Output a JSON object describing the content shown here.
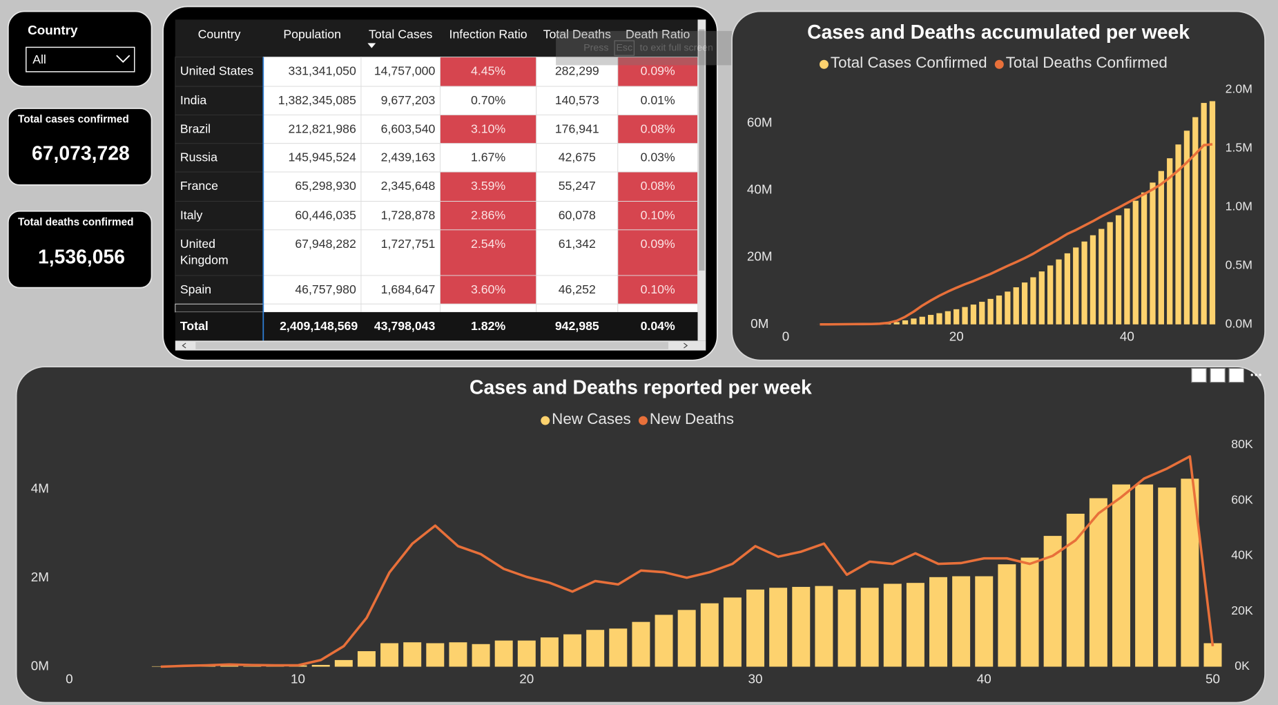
{
  "slicer": {
    "label": "Country",
    "selected": "All"
  },
  "cards": [
    {
      "label": "Total cases confirmed",
      "value": "67,073,728"
    },
    {
      "label": "Total deaths confirmed",
      "value": "1,536,056"
    }
  ],
  "fullscreen_hint": {
    "press": "Press",
    "key": "Esc",
    "rest": "to exit full screen"
  },
  "table": {
    "columns": [
      "Country",
      "Population",
      "Total Cases",
      "Infection Ratio",
      "Total Deaths",
      "Death Ratio"
    ],
    "rows": [
      [
        "United States",
        "331,341,050",
        "14,757,000",
        "4.45%",
        "282,299",
        "0.09%"
      ],
      [
        "India",
        "1,382,345,085",
        "9,677,203",
        "0.70%",
        "140,573",
        "0.01%"
      ],
      [
        "Brazil",
        "212,821,986",
        "6,603,540",
        "3.10%",
        "176,941",
        "0.08%"
      ],
      [
        "Russia",
        "145,945,524",
        "2,439,163",
        "1.67%",
        "42,675",
        "0.03%"
      ],
      [
        "France",
        "65,298,930",
        "2,345,648",
        "3.59%",
        "55,247",
        "0.08%"
      ],
      [
        "Italy",
        "60,446,035",
        "1,728,878",
        "2.86%",
        "60,078",
        "0.10%"
      ],
      [
        "United Kingdom",
        "67,948,282",
        "1,727,751",
        "2.54%",
        "61,342",
        "0.09%"
      ],
      [
        "Spain",
        "46,757,980",
        "1,684,647",
        "3.60%",
        "46,252",
        "0.10%"
      ]
    ],
    "total": [
      "Total",
      "2,409,148,569",
      "43,798,043",
      "1.82%",
      "942,985",
      "0.04%"
    ],
    "highlight_color": "#d6454f",
    "highlight_columns": [
      3,
      5
    ],
    "highlighted": [
      true,
      false,
      true,
      false,
      true,
      true,
      true,
      true
    ]
  },
  "chart_data": [
    {
      "type": "combo",
      "title": "Cases and Deaths accumulated per week",
      "x": [
        4,
        5,
        6,
        7,
        8,
        9,
        10,
        11,
        12,
        13,
        14,
        15,
        16,
        17,
        18,
        19,
        20,
        21,
        22,
        23,
        24,
        25,
        26,
        27,
        28,
        29,
        30,
        31,
        32,
        33,
        34,
        35,
        36,
        37,
        38,
        39,
        40,
        41,
        42,
        43,
        44,
        45,
        46,
        47,
        48,
        49,
        50
      ],
      "xlim": [
        0,
        51
      ],
      "xticks": [
        0,
        20,
        40
      ],
      "ylim": [
        0,
        70
      ],
      "yticks": [
        {
          "value": 0,
          "label": "0M"
        },
        {
          "value": 20,
          "label": "20M"
        },
        {
          "value": 40,
          "label": "40M"
        },
        {
          "value": 60,
          "label": "60M"
        }
      ],
      "y2lim": [
        0,
        2
      ],
      "y2ticks": [
        {
          "value": 0,
          "label": "0.0M"
        },
        {
          "value": 0.5,
          "label": "0.5M"
        },
        {
          "value": 1,
          "label": "1.0M"
        },
        {
          "value": 1.5,
          "label": "1.5M"
        },
        {
          "value": 2,
          "label": "2.0M"
        }
      ],
      "series": [
        {
          "name": "Total Cases Confirmed",
          "type": "bar",
          "color": "#fdd26e",
          "values": [
            0.01,
            0.03,
            0.05,
            0.07,
            0.08,
            0.1,
            0.13,
            0.17,
            0.32,
            0.67,
            1.2,
            1.75,
            2.28,
            2.83,
            3.34,
            3.93,
            4.52,
            5.18,
            5.91,
            6.74,
            7.6,
            8.61,
            9.78,
            11.06,
            12.49,
            14.05,
            15.79,
            17.57,
            19.37,
            21.19,
            22.93,
            24.71,
            26.58,
            28.47,
            30.49,
            32.53,
            34.57,
            36.88,
            39.34,
            42.29,
            45.74,
            49.54,
            53.65,
            57.76,
            61.8,
            66.04,
            66.57
          ]
        },
        {
          "name": "Total Deaths Confirmed",
          "type": "line",
          "axis": "y2",
          "color": "#e8703a",
          "values": [
            0,
            0.0003,
            0.0008,
            0.0016,
            0.0022,
            0.0027,
            0.0032,
            0.0056,
            0.013,
            0.0306,
            0.0646,
            0.109,
            0.1599,
            0.2034,
            0.244,
            0.2793,
            0.3117,
            0.342,
            0.3691,
            0.4,
            0.4297,
            0.4644,
            0.4985,
            0.5306,
            0.5647,
            0.6018,
            0.6453,
            0.685,
            0.7265,
            0.7709,
            0.8041,
            0.842,
            0.8791,
            0.92,
            0.9571,
            0.9945,
            1.0336,
            1.0727,
            1.1098,
            1.1498,
            1.1954,
            1.2507,
            1.3119,
            1.3798,
            1.4513,
            1.5272,
            1.5346
          ]
        }
      ]
    },
    {
      "type": "combo",
      "title": "Cases and Deaths reported per week",
      "x": [
        4,
        5,
        6,
        7,
        8,
        9,
        10,
        11,
        12,
        13,
        14,
        15,
        16,
        17,
        18,
        19,
        20,
        21,
        22,
        23,
        24,
        25,
        26,
        27,
        28,
        29,
        30,
        31,
        32,
        33,
        34,
        35,
        36,
        37,
        38,
        39,
        40,
        41,
        42,
        43,
        44,
        45,
        46,
        47,
        48,
        49,
        50
      ],
      "xlim": [
        0,
        51
      ],
      "xticks": [
        0,
        10,
        20,
        30,
        40,
        50
      ],
      "ylim": [
        0,
        5
      ],
      "yticks": [
        {
          "value": 0,
          "label": "0M"
        },
        {
          "value": 2,
          "label": "2M"
        },
        {
          "value": 4,
          "label": "4M"
        }
      ],
      "y2lim": [
        0,
        80
      ],
      "y2ticks": [
        {
          "value": 0,
          "label": "0K"
        },
        {
          "value": 20,
          "label": "20K"
        },
        {
          "value": 40,
          "label": "40K"
        },
        {
          "value": 60,
          "label": "60K"
        },
        {
          "value": 80,
          "label": "80K"
        }
      ],
      "series": [
        {
          "name": "New Cases",
          "type": "bar",
          "color": "#fdd26e",
          "values": [
            0.01,
            0.02,
            0.02,
            0.02,
            0.01,
            0.02,
            0.03,
            0.04,
            0.15,
            0.35,
            0.53,
            0.55,
            0.53,
            0.55,
            0.51,
            0.59,
            0.59,
            0.66,
            0.73,
            0.83,
            0.86,
            1.01,
            1.17,
            1.28,
            1.43,
            1.56,
            1.74,
            1.78,
            1.8,
            1.82,
            1.74,
            1.78,
            1.87,
            1.89,
            2.02,
            2.04,
            2.04,
            2.31,
            2.46,
            2.95,
            3.45,
            3.8,
            4.11,
            4.11,
            4.04,
            4.24,
            0.53
          ]
        },
        {
          "name": "New Deaths",
          "type": "line",
          "axis": "y2",
          "color": "#e8703a",
          "values": [
            0,
            0.3,
            0.5,
            0.8,
            0.6,
            0.5,
            0.5,
            2.4,
            7.4,
            17.6,
            34,
            44.4,
            50.9,
            43.5,
            40.6,
            35.3,
            32.4,
            30.3,
            27.1,
            30.9,
            29.7,
            34.7,
            34.1,
            32.1,
            34.1,
            37.1,
            43.5,
            39.7,
            41.5,
            44.4,
            33.2,
            37.9,
            37.1,
            40.9,
            37.1,
            37.4,
            39.1,
            39.1,
            37.1,
            40.0,
            45.6,
            55.3,
            61.2,
            67.9,
            71.5,
            75.9,
            7.4
          ]
        }
      ]
    }
  ]
}
